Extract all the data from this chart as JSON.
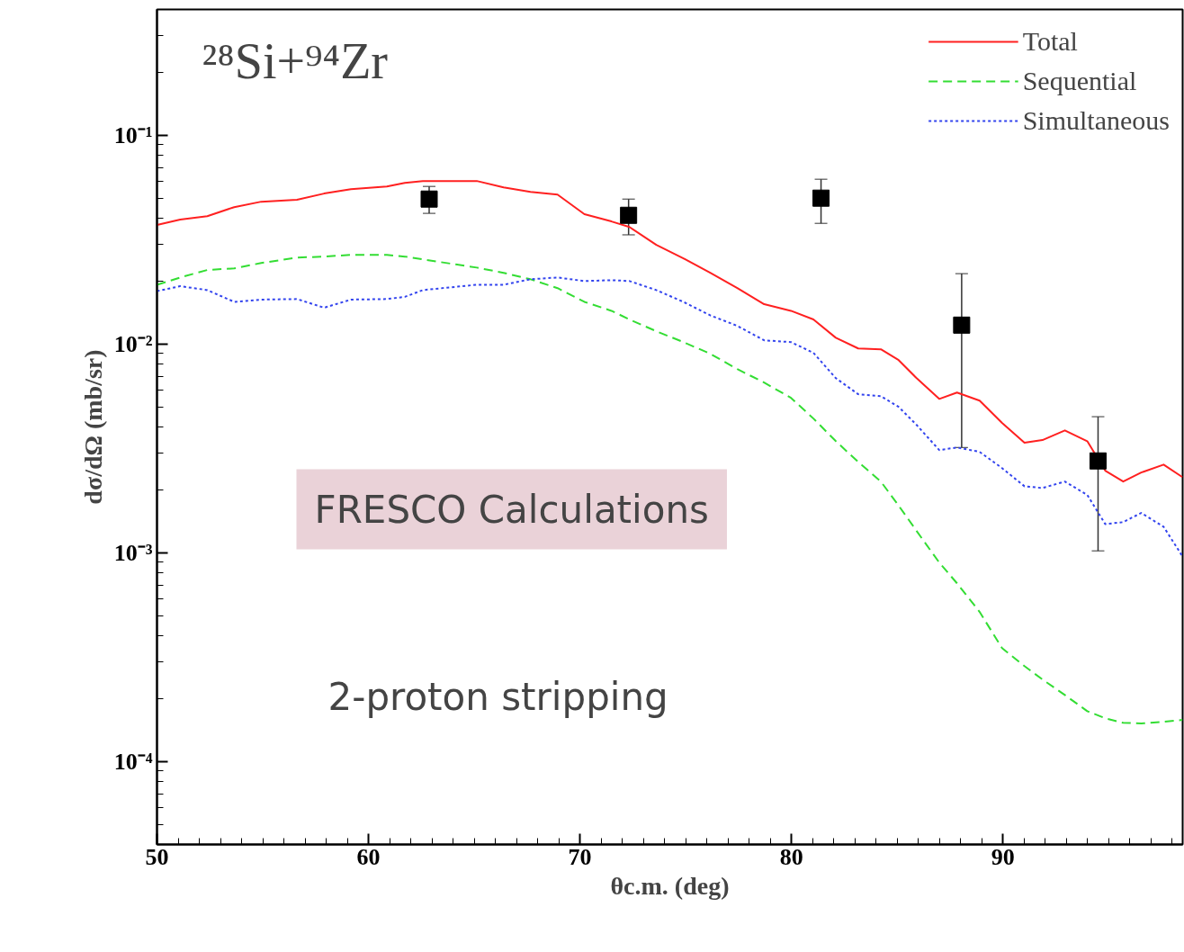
{
  "chart_data": {
    "type": "line",
    "title": "²⁸Si+⁹⁴Zr",
    "xlabel": "θc.m. (deg)",
    "ylabel": "dσ/dΩ (mb/sr)",
    "log": "y",
    "xlim": [
      50,
      98.5
    ],
    "ylim": [
      4e-05,
      0.4
    ],
    "xticks": [
      50,
      60,
      70,
      80,
      90
    ],
    "yticks": [
      {
        "value": 0.0001,
        "label": "10⁻⁴"
      },
      {
        "value": 0.001,
        "label": "10⁻³"
      },
      {
        "value": 0.01,
        "label": "10⁻²"
      },
      {
        "value": 0.1,
        "label": "10⁻¹"
      }
    ],
    "grid": false,
    "legend": "top right",
    "x": [
      50,
      51.1,
      52.38,
      53.65,
      54.93,
      56.62,
      57.9,
      59.17,
      60.87,
      61.72,
      62.57,
      65.12,
      66.39,
      67.66,
      68.94,
      70.21,
      71.49,
      72.34,
      73.61,
      74.89,
      76.16,
      77.44,
      78.71,
      79.98,
      81.04,
      82.1,
      83.16,
      84.23,
      85.07,
      85.92,
      86.99,
      87.83,
      88.9,
      89.96,
      91.02,
      91.87,
      92.93,
      93.99,
      94.84,
      95.69,
      96.54,
      97.6,
      98.49
    ],
    "series": [
      {
        "name": "Total",
        "color": "#ff2020",
        "line_style": "solid",
        "values": [
          0.0371,
          0.0394,
          0.0409,
          0.0452,
          0.048,
          0.049,
          0.0525,
          0.0551,
          0.0568,
          0.0591,
          0.0603,
          0.0603,
          0.0562,
          0.0535,
          0.0519,
          0.0418,
          0.0386,
          0.0363,
          0.0298,
          0.0257,
          0.0219,
          0.0185,
          0.0155,
          0.0144,
          0.0131,
          0.0107,
          0.00951,
          0.00942,
          0.00836,
          0.00685,
          0.00545,
          0.00585,
          0.00535,
          0.00418,
          0.00336,
          0.00346,
          0.00385,
          0.00342,
          0.00247,
          0.00219,
          0.00242,
          0.00264,
          0.0023
        ]
      },
      {
        "name": "Sequential",
        "color": "#33dd33",
        "line_style": "dashed",
        "values": [
          0.0192,
          0.0208,
          0.0226,
          0.023,
          0.0244,
          0.0259,
          0.0262,
          0.0267,
          0.0267,
          0.0262,
          0.0254,
          0.0232,
          0.0219,
          0.0204,
          0.0185,
          0.0159,
          0.0144,
          0.0131,
          0.0115,
          0.0102,
          0.00897,
          0.00757,
          0.00653,
          0.00551,
          0.00439,
          0.00342,
          0.00272,
          0.00219,
          0.00168,
          0.00127,
          0.000897,
          0.000713,
          0.00052,
          0.000349,
          0.000286,
          0.000247,
          0.000208,
          0.000174,
          0.000161,
          0.000153,
          0.000152,
          0.000155,
          0.000158
        ]
      },
      {
        "name": "Simultaneous",
        "color": "#3344ee",
        "line_style": "dotted",
        "values": [
          0.0179,
          0.0189,
          0.0181,
          0.0159,
          0.0163,
          0.0164,
          0.0149,
          0.0163,
          0.0164,
          0.0168,
          0.0181,
          0.0192,
          0.0192,
          0.0204,
          0.0208,
          0.02,
          0.0202,
          0.02,
          0.0181,
          0.0159,
          0.0137,
          0.0122,
          0.0104,
          0.0102,
          0.00906,
          0.00685,
          0.00574,
          0.00562,
          0.00499,
          0.00409,
          0.0031,
          0.00319,
          0.00304,
          0.00254,
          0.00208,
          0.00204,
          0.00219,
          0.00189,
          0.00137,
          0.0014,
          0.00155,
          0.00133,
          0.000961
        ]
      },
      {
        "type": "scatter",
        "marker": "square",
        "color": "#000000",
        "x": [
          62.87,
          72.3,
          81.4,
          88.05,
          94.5
        ],
        "values": [
          0.0494,
          0.0413,
          0.0499,
          0.0123,
          0.00275
        ],
        "errors": [
          [
            0.0422,
            0.0568
          ],
          [
            0.0333,
            0.0494
          ],
          [
            0.0378,
            0.0615
          ],
          [
            0.00319,
            0.0217
          ],
          [
            0.00102,
            0.00448
          ]
        ]
      }
    ],
    "annotations": [
      "FRESCO Calculations",
      "2-proton stripping"
    ]
  }
}
